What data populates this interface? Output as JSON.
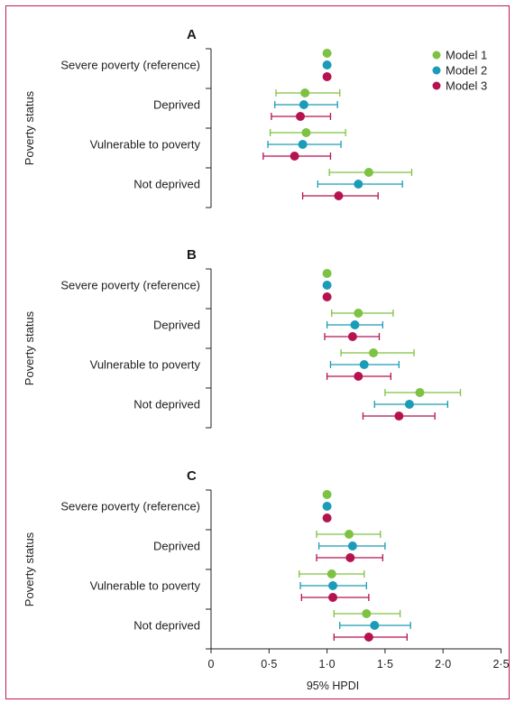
{
  "frame_color": "#c2185b",
  "chart_data": [
    {
      "type": "forest",
      "panel": "A",
      "categories": [
        "Severe poverty (reference)",
        "Deprived",
        "Vulnerable to poverty",
        "Not deprived"
      ],
      "ylabel": "Poverty status",
      "xlim": [
        0,
        2.5
      ],
      "series": [
        {
          "name": "Model 1",
          "color": "#7dc242",
          "estimates": [
            1.0,
            0.81,
            0.82,
            1.36
          ],
          "lower": [
            null,
            0.56,
            0.51,
            1.02
          ],
          "upper": [
            null,
            1.11,
            1.16,
            1.73
          ]
        },
        {
          "name": "Model 2",
          "color": "#1a9cb8",
          "estimates": [
            1.0,
            0.8,
            0.79,
            1.27
          ],
          "lower": [
            null,
            0.55,
            0.49,
            0.92
          ],
          "upper": [
            null,
            1.09,
            1.12,
            1.65
          ]
        },
        {
          "name": "Model 3",
          "color": "#b5134f",
          "estimates": [
            1.0,
            0.77,
            0.72,
            1.1
          ],
          "lower": [
            null,
            0.52,
            0.45,
            0.79
          ],
          "upper": [
            null,
            1.03,
            1.03,
            1.44
          ]
        }
      ]
    },
    {
      "type": "forest",
      "panel": "B",
      "categories": [
        "Severe poverty (reference)",
        "Deprived",
        "Vulnerable to poverty",
        "Not deprived"
      ],
      "ylabel": "Poverty status",
      "xlim": [
        0,
        2.5
      ],
      "series": [
        {
          "name": "Model 1",
          "color": "#7dc242",
          "estimates": [
            1.0,
            1.27,
            1.4,
            1.8
          ],
          "lower": [
            null,
            1.04,
            1.12,
            1.5
          ],
          "upper": [
            null,
            1.57,
            1.75,
            2.15
          ]
        },
        {
          "name": "Model 2",
          "color": "#1a9cb8",
          "estimates": [
            1.0,
            1.24,
            1.32,
            1.71
          ],
          "lower": [
            null,
            1.0,
            1.03,
            1.41
          ],
          "upper": [
            null,
            1.48,
            1.62,
            2.04
          ]
        },
        {
          "name": "Model 3",
          "color": "#b5134f",
          "estimates": [
            1.0,
            1.22,
            1.27,
            1.62
          ],
          "lower": [
            null,
            0.98,
            1.0,
            1.31
          ],
          "upper": [
            null,
            1.45,
            1.55,
            1.93
          ]
        }
      ]
    },
    {
      "type": "forest",
      "panel": "C",
      "categories": [
        "Severe poverty (reference)",
        "Deprived",
        "Vulnerable to poverty",
        "Not deprived"
      ],
      "ylabel": "Poverty status",
      "xlim": [
        0,
        2.5
      ],
      "xlabel": "95% HPDI",
      "xticks": [
        0,
        0.5,
        1.0,
        1.5,
        2.0,
        2.5
      ],
      "xtick_labels": [
        "0",
        "0·5",
        "1·0",
        "1·5",
        "2·0",
        "2·5"
      ],
      "series": [
        {
          "name": "Model 1",
          "color": "#7dc242",
          "estimates": [
            1.0,
            1.19,
            1.04,
            1.34
          ],
          "lower": [
            null,
            0.91,
            0.76,
            1.06
          ],
          "upper": [
            null,
            1.46,
            1.32,
            1.63
          ]
        },
        {
          "name": "Model 2",
          "color": "#1a9cb8",
          "estimates": [
            1.0,
            1.22,
            1.05,
            1.41
          ],
          "lower": [
            null,
            0.93,
            0.77,
            1.11
          ],
          "upper": [
            null,
            1.5,
            1.34,
            1.72
          ]
        },
        {
          "name": "Model 3",
          "color": "#b5134f",
          "estimates": [
            1.0,
            1.2,
            1.05,
            1.36
          ],
          "lower": [
            null,
            0.91,
            0.78,
            1.06
          ],
          "upper": [
            null,
            1.48,
            1.36,
            1.69
          ]
        }
      ]
    }
  ],
  "legend": {
    "placement": "top-right",
    "items": [
      {
        "label": "Model 1",
        "color": "#7dc242"
      },
      {
        "label": "Model 2",
        "color": "#1a9cb8"
      },
      {
        "label": "Model 3",
        "color": "#b5134f"
      }
    ]
  }
}
